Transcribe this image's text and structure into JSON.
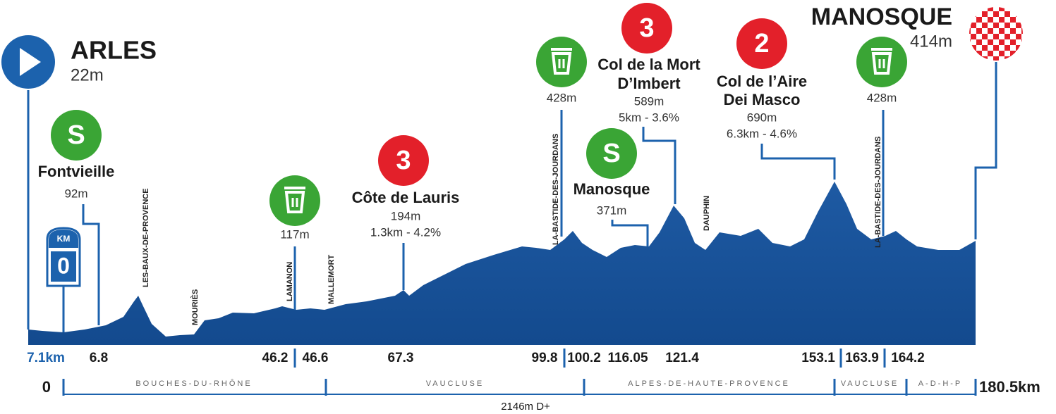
{
  "start": {
    "name": "ARLES",
    "altitude": "22m"
  },
  "finish": {
    "name": "MANOSQUE",
    "altitude": "414m"
  },
  "km_badge": {
    "label": "KM",
    "value": "0"
  },
  "points": [
    {
      "badge": "S",
      "name": [
        "Fontvieille"
      ],
      "altitude": "92m"
    },
    {
      "altitude": "117m"
    },
    {
      "badge": "3",
      "name": [
        "Côte de Lauris"
      ],
      "altitude": "194m",
      "climb": "1.3km - 4.2%"
    },
    {
      "altitude": "428m"
    },
    {
      "badge": "S",
      "name": [
        "Manosque"
      ],
      "altitude": "371m"
    },
    {
      "badge": "3",
      "name": [
        "Col de la Mort",
        "D’Imbert"
      ],
      "altitude": "589m",
      "climb": "5km - 3.6%"
    },
    {
      "badge": "2",
      "name": [
        "Col de l’Aire",
        "Dei Masco"
      ],
      "altitude": "690m",
      "climb": "6.3km - 4.6%"
    },
    {
      "altitude": "428m"
    }
  ],
  "towns": [
    "LES-BAUX-DE-PROVENCE",
    "MOURIÈS",
    "LAMANON",
    "MALLEMORT",
    "LA-BASTIDE-DES-JOURDANS",
    "DAUPHIN",
    "LA-BASTIDE-DES-JOURDANS"
  ],
  "distances": [
    "7.1km",
    "6.8",
    "46.2",
    "46.6",
    "67.3",
    "99.8",
    "100.2",
    "116.05",
    "121.4",
    "153.1",
    "163.9",
    "164.2"
  ],
  "scale": {
    "start": "0",
    "end": "180.5km",
    "regions": [
      "BOUCHES-DU-RHÔNE",
      "VAUCLUSE",
      "ALPES-DE-HAUTE-PROVENCE",
      "VAUCLUSE",
      "A-D-H-P"
    ],
    "elevation_gain": "2146m D+"
  }
}
